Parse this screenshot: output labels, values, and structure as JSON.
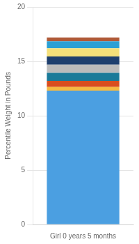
{
  "chart_data": {
    "type": "bar",
    "stacked": true,
    "categories": [
      "Girl 0 years 5 months"
    ],
    "series": [
      {
        "color": "#4B9FE1",
        "values": [
          12.3
        ]
      },
      {
        "color": "#F5B942",
        "values": [
          0.35
        ]
      },
      {
        "color": "#D94E1F",
        "values": [
          0.55
        ]
      },
      {
        "color": "#1A7A99",
        "values": [
          0.75
        ]
      },
      {
        "color": "#BBBBBB",
        "values": [
          0.75
        ]
      },
      {
        "color": "#1E3F6E",
        "values": [
          0.75
        ]
      },
      {
        "color": "#F5E07A",
        "values": [
          0.75
        ]
      },
      {
        "color": "#2BA0D4",
        "values": [
          0.65
        ]
      },
      {
        "color": "#B05A38",
        "values": [
          0.35
        ]
      }
    ],
    "ylabel": "Percentile Weight in Pounds",
    "ylim": [
      0,
      20
    ],
    "yticks": [
      0,
      5,
      10,
      15,
      20
    ],
    "grid": true
  }
}
